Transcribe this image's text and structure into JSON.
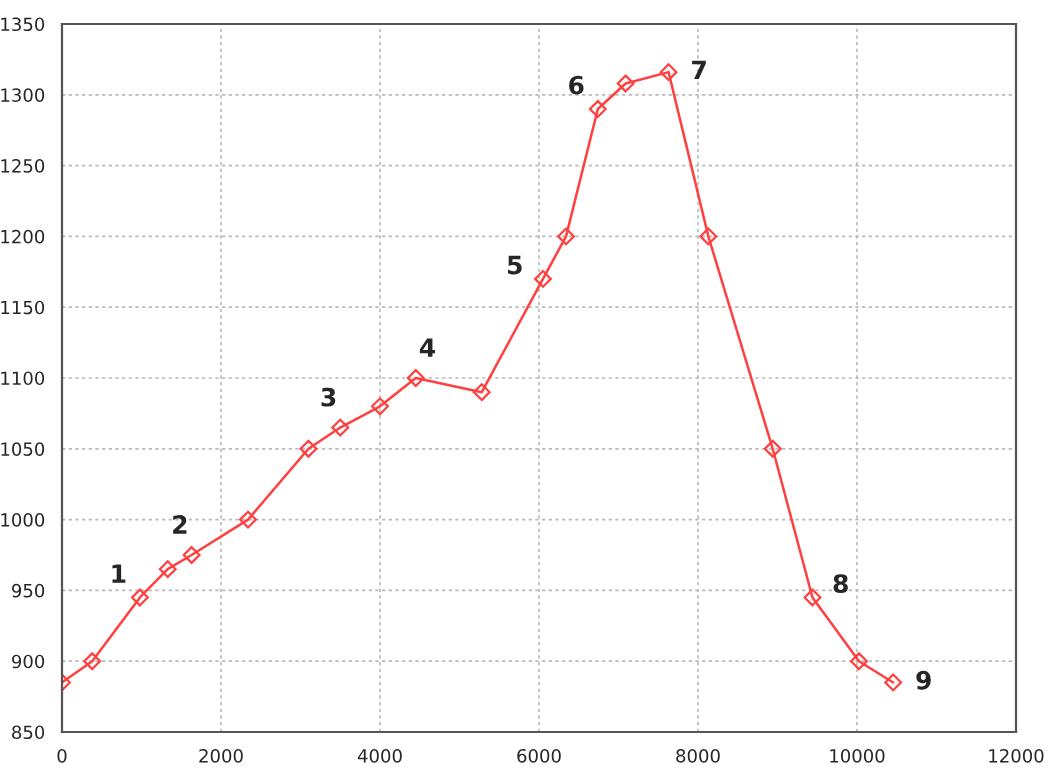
{
  "chart_data": {
    "type": "line",
    "x": [
      0,
      380,
      980,
      1330,
      1630,
      2340,
      3100,
      3500,
      4000,
      4450,
      5280,
      6050,
      6340,
      6740,
      7090,
      7630,
      8130,
      8940,
      9440,
      10025,
      10455
    ],
    "series": [
      {
        "color": "#ff4040",
        "values": [
          885,
          900,
          945,
          965,
          975,
          1000,
          1050,
          1065,
          1080,
          1100,
          1090,
          1170,
          1200,
          1290,
          1308,
          1316,
          1200,
          1050,
          945,
          900,
          885
        ]
      }
    ],
    "xlim": [
      0,
      12000
    ],
    "xticks": [
      0,
      2000,
      4000,
      6000,
      8000,
      10000,
      12000
    ],
    "ylim": [
      850,
      1350
    ],
    "yticks": [
      850,
      900,
      950,
      1000,
      1050,
      1100,
      1150,
      1200,
      1250,
      1300,
      1350
    ],
    "grid": true,
    "marker": "diamond",
    "line_style": "solid",
    "annotations": [
      {
        "text": "1",
        "x": 980,
        "y": 945
      },
      {
        "text": "2",
        "x": 1630,
        "y": 975
      },
      {
        "text": "3",
        "x": 3500,
        "y": 1065
      },
      {
        "text": "4",
        "x": 4450,
        "y": 1100
      },
      {
        "text": "5",
        "x": 6050,
        "y": 1170
      },
      {
        "text": "6",
        "x": 6740,
        "y": 1290
      },
      {
        "text": "7",
        "x": 7630,
        "y": 1316
      },
      {
        "text": "8",
        "x": 9440,
        "y": 945
      },
      {
        "text": "9",
        "x": 10455,
        "y": 885
      }
    ]
  }
}
